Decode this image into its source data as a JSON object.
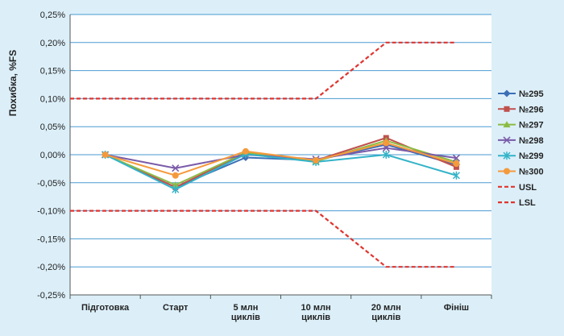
{
  "chart_data": {
    "type": "line",
    "title": "",
    "xlabel": "",
    "ylabel": "Похибка, %FS",
    "ylim": [
      -0.25,
      0.25
    ],
    "y_ticks": [
      0.25,
      0.2,
      0.15,
      0.1,
      0.05,
      0.0,
      -0.05,
      -0.1,
      -0.15,
      -0.2,
      -0.25
    ],
    "y_tick_labels": [
      "0,25%",
      "0,20%",
      "0,15%",
      "0,10%",
      "0,05%",
      "0,00%",
      "-0,05%",
      "-0,10%",
      "-0,15%",
      "-0,20%",
      "-0,25%"
    ],
    "grid": true,
    "legend_position": "right",
    "categories": [
      [
        "Підготовка"
      ],
      [
        "Старт"
      ],
      [
        "5 млн",
        "циклів"
      ],
      [
        "10 млн",
        "циклів"
      ],
      [
        "20 млн",
        "циклів"
      ],
      [
        "Фініш"
      ]
    ],
    "series": [
      {
        "name": "№295",
        "color": "#3b6fb6",
        "marker": "diamond",
        "dashed": false,
        "values": [
          0.0,
          -0.058,
          -0.005,
          -0.01,
          0.018,
          -0.018
        ]
      },
      {
        "name": "№296",
        "color": "#c0504d",
        "marker": "square",
        "dashed": false,
        "values": [
          0.0,
          -0.058,
          0.003,
          -0.01,
          0.03,
          -0.022
        ]
      },
      {
        "name": "№297",
        "color": "#8cbb44",
        "marker": "triangle",
        "dashed": false,
        "values": [
          0.0,
          -0.054,
          0.004,
          -0.012,
          0.025,
          -0.013
        ]
      },
      {
        "name": "№298",
        "color": "#7a5ba8",
        "marker": "x",
        "dashed": false,
        "values": [
          0.0,
          -0.024,
          0.0,
          -0.008,
          0.012,
          -0.006
        ]
      },
      {
        "name": "№299",
        "color": "#33b3c8",
        "marker": "star",
        "dashed": false,
        "values": [
          0.0,
          -0.062,
          0.001,
          -0.013,
          0.0,
          -0.037
        ]
      },
      {
        "name": "№300",
        "color": "#f59a3c",
        "marker": "circle",
        "dashed": false,
        "values": [
          0.0,
          -0.037,
          0.006,
          -0.01,
          0.021,
          -0.016
        ]
      },
      {
        "name": "USL",
        "color": "#e0342e",
        "marker": "none",
        "dashed": true,
        "points": [
          [
            0,
            0.1
          ],
          [
            3.5,
            0.1
          ],
          [
            4.5,
            0.2
          ],
          [
            5.5,
            0.2
          ]
        ]
      },
      {
        "name": "LSL",
        "color": "#e0342e",
        "marker": "none",
        "dashed": true,
        "points": [
          [
            0,
            -0.1
          ],
          [
            3.5,
            -0.1
          ],
          [
            4.5,
            -0.2
          ],
          [
            5.5,
            -0.2
          ]
        ]
      }
    ]
  }
}
